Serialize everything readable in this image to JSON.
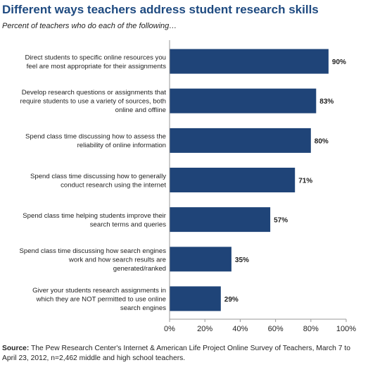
{
  "title": "Different ways teachers address student research skills",
  "subtitle": "Percent of teachers who do each of the following…",
  "source": {
    "label": "Source:",
    "text": "The Pew Research Center's Internet & American Life Project Online Survey of Teachers, March 7 to April 23, 2012, n=2,462 middle and high school teachers."
  },
  "colors": {
    "bar": "#1f4478",
    "title": "#1e4a80",
    "axis": "#999999"
  },
  "chart_data": {
    "type": "bar",
    "orientation": "horizontal",
    "title": "Different ways teachers address student research skills",
    "subtitle": "Percent of teachers who do each of the following…",
    "categories": [
      [
        "Direct students to specific online resources you",
        "feel are most appropriate for their assignments"
      ],
      [
        "Develop research questions or assignments that",
        "require students to use a variety of sources, both",
        "online and offline"
      ],
      [
        "Spend class time discussing how to assess the",
        "reliability of online information"
      ],
      [
        "Spend class time discussing how to generally",
        "conduct research using the internet"
      ],
      [
        "Spend class time helping students improve their",
        "search terms and queries"
      ],
      [
        "Spend class time discussing how search engines",
        "work and how search results are",
        "generated/ranked"
      ],
      [
        "Giver your students research assignments in",
        "which they are NOT permitted to use online",
        "search engines"
      ]
    ],
    "values": [
      90,
      83,
      80,
      71,
      57,
      35,
      29
    ],
    "value_labels": [
      "90%",
      "83%",
      "80%",
      "71%",
      "57%",
      "35%",
      "29%"
    ],
    "xlim": [
      0,
      100
    ],
    "xticks": [
      "0%",
      "20%",
      "40%",
      "60%",
      "80%",
      "100%"
    ],
    "grid": false,
    "legend": "none"
  }
}
